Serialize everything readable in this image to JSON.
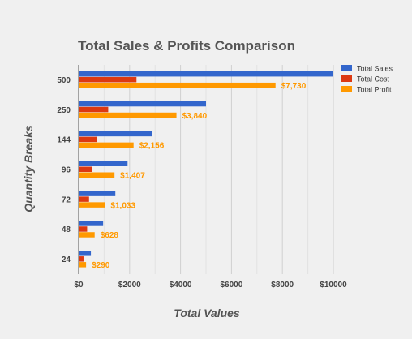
{
  "chart_data": {
    "type": "bar",
    "orientation": "horizontal",
    "title": "Total Sales & Profits Comparison",
    "xlabel": "Total Values",
    "ylabel": "Quantity Breaks",
    "categories": [
      "500",
      "250",
      "144",
      "96",
      "72",
      "48",
      "24"
    ],
    "series": [
      {
        "name": "Total Sales",
        "color": "#3366cc",
        "values": [
          10000,
          5000,
          2880,
          1920,
          1440,
          960,
          480
        ]
      },
      {
        "name": "Total Cost",
        "color": "#dc3912",
        "values": [
          2270,
          1160,
          724,
          513,
          407,
          332,
          190
        ]
      },
      {
        "name": "Total Profit",
        "color": "#ff9900",
        "values": [
          7730,
          3840,
          2156,
          1407,
          1033,
          628,
          290
        ]
      }
    ],
    "data_labels": [
      "$7,730",
      "$3,840",
      "$2,156",
      "$1,407",
      "$1,033",
      "$628",
      "$290"
    ],
    "data_label_color": "#ff9900",
    "xlim": [
      0,
      10000
    ],
    "xticks": [
      0,
      2000,
      4000,
      6000,
      8000,
      10000
    ],
    "xtick_labels": [
      "$0",
      "$2000",
      "$4000",
      "$6000",
      "$8000",
      "$10000"
    ],
    "grid": true,
    "legend_position": "top-right"
  }
}
